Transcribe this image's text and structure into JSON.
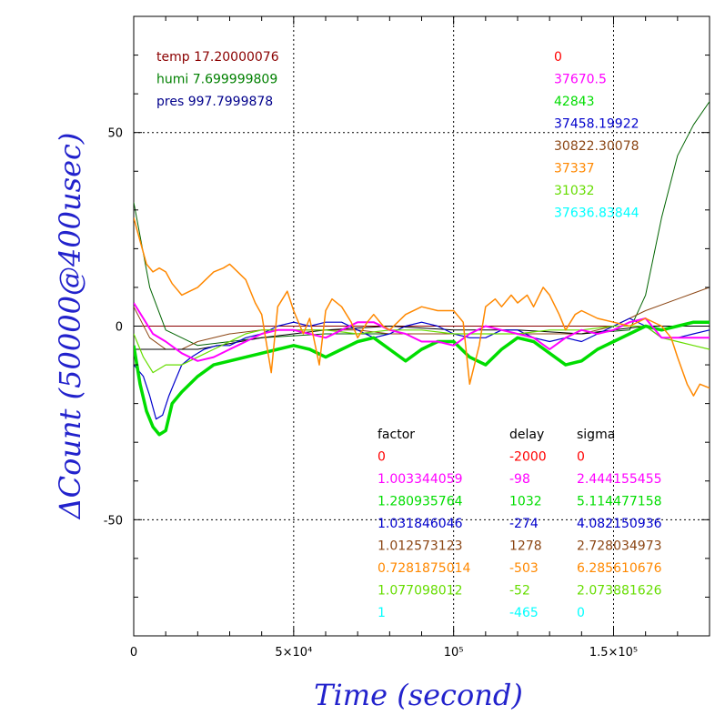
{
  "chart_data": {
    "type": "line",
    "title": "",
    "xlabel": "Time (second)",
    "ylabel": "ΔCount (50000@400usec)",
    "xlim": [
      0,
      180000
    ],
    "ylim": [
      -80,
      80
    ],
    "grid": true,
    "x_ticks": [
      {
        "value": 0,
        "label": "0"
      },
      {
        "value": 50000,
        "label": "5×10⁴"
      },
      {
        "value": 100000,
        "label": "10⁵"
      },
      {
        "value": 150000,
        "label": "1.5×10⁵"
      }
    ],
    "y_ticks": [
      {
        "value": 50,
        "label": "50"
      },
      {
        "value": 0,
        "label": "0"
      },
      {
        "value": -50,
        "label": "-50"
      }
    ],
    "env_legend": [
      {
        "text": "temp 17.20000076",
        "color": "#8b0000"
      },
      {
        "text": "humi 7.699999809",
        "color": "#008000"
      },
      {
        "text": "pres 997.7999878",
        "color": "#00008b"
      }
    ],
    "offsets": [
      {
        "text": "0",
        "color": "#ff0000"
      },
      {
        "text": "37670.5",
        "color": "#ff00ff"
      },
      {
        "text": "42843",
        "color": "#00dd00"
      },
      {
        "text": "37458.19922",
        "color": "#0000cc"
      },
      {
        "text": "30822.30078",
        "color": "#8b4513"
      },
      {
        "text": "37337",
        "color": "#ff8800"
      },
      {
        "text": "31032",
        "color": "#66dd00"
      },
      {
        "text": "37636.83844",
        "color": "#00ffff"
      }
    ],
    "stats_table": {
      "headers": [
        "factor",
        "delay",
        "sigma"
      ],
      "rows": [
        {
          "factor": "0",
          "delay": "-2000",
          "sigma": "0",
          "color": "#ff0000"
        },
        {
          "factor": "1.003344059",
          "delay": "-98",
          "sigma": "2.444155455",
          "color": "#ff00ff"
        },
        {
          "factor": "1.280935764",
          "delay": "1032",
          "sigma": "5.114477158",
          "color": "#00dd00"
        },
        {
          "factor": "1.031846046",
          "delay": "-274",
          "sigma": "4.082150936",
          "color": "#0000cc"
        },
        {
          "factor": "1.012573123",
          "delay": "1278",
          "sigma": "2.728034973",
          "color": "#8b4513"
        },
        {
          "factor": "0.7281875014",
          "delay": "-503",
          "sigma": "6.285610676",
          "color": "#ff8800"
        },
        {
          "factor": "1.077098012",
          "delay": "-52",
          "sigma": "2.073881626",
          "color": "#66dd00"
        },
        {
          "factor": "1",
          "delay": "-465",
          "sigma": "0",
          "color": "#00ffff"
        }
      ]
    },
    "series": [
      {
        "color": "#8b0000",
        "width": 1,
        "x": [
          0,
          180000
        ],
        "y": [
          0,
          0
        ]
      },
      {
        "color": "#006400",
        "width": 1,
        "x": [
          0,
          5000,
          10000,
          20000,
          40000,
          60000,
          80000,
          100000,
          120000,
          140000,
          155000,
          160000,
          165000,
          170000,
          175000,
          180000
        ],
        "y": [
          32,
          10,
          -1,
          -5,
          -3,
          -2,
          -2,
          -2,
          -2,
          -2,
          -1,
          8,
          28,
          44,
          52,
          58
        ]
      },
      {
        "color": "#8b4513",
        "width": 1,
        "x": [
          0,
          5000,
          10000,
          15000,
          20000,
          30000,
          40000,
          50000,
          60000,
          70000,
          80000,
          90000,
          100000,
          110000,
          120000,
          130000,
          140000,
          150000,
          160000,
          170000,
          180000
        ],
        "y": [
          5,
          -3,
          -6,
          -6,
          -4,
          -2,
          -1,
          -1,
          -1,
          -1,
          -2,
          -2,
          -2,
          -2,
          -2,
          -2,
          -2,
          0,
          4,
          7,
          10
        ]
      },
      {
        "color": "#000000",
        "width": 1,
        "x": [
          0,
          10000,
          20000,
          40000,
          60000,
          80000,
          100000,
          120000,
          140000,
          160000,
          180000
        ],
        "y": [
          -6,
          -6,
          -6,
          -3,
          -1,
          0,
          -1,
          -1,
          -2,
          0,
          0
        ]
      },
      {
        "color": "#0000cc",
        "width": 1.2,
        "x": [
          0,
          3000,
          5000,
          7000,
          9000,
          11000,
          13000,
          15000,
          18000,
          22000,
          26000,
          30000,
          35000,
          40000,
          45000,
          50000,
          55000,
          60000,
          65000,
          70000,
          75000,
          80000,
          85000,
          90000,
          95000,
          100000,
          105000,
          110000,
          115000,
          120000,
          125000,
          130000,
          135000,
          140000,
          145000,
          150000,
          155000,
          160000,
          165000,
          170000,
          175000,
          180000
        ],
        "y": [
          -10,
          -13,
          -18,
          -24,
          -23,
          -18,
          -14,
          -10,
          -8,
          -6,
          -5,
          -5,
          -3,
          -2,
          0,
          1,
          0,
          1,
          1,
          -1,
          -3,
          -2,
          0,
          1,
          0,
          -2,
          -3,
          -3,
          -1,
          -1,
          -3,
          -4,
          -3,
          -4,
          -2,
          0,
          2,
          0,
          -3,
          -3,
          -2,
          -1
        ]
      },
      {
        "color": "#66dd00",
        "width": 1.2,
        "x": [
          0,
          3000,
          6000,
          10000,
          15000,
          20000,
          25000,
          30000,
          35000,
          40000,
          50000,
          60000,
          70000,
          80000,
          90000,
          100000,
          110000,
          120000,
          130000,
          140000,
          150000,
          160000,
          165000,
          170000,
          175000,
          180000
        ],
        "y": [
          -2,
          -8,
          -12,
          -10,
          -10,
          -8,
          -6,
          -4,
          -2,
          -1,
          -1,
          -1,
          -2,
          -1,
          -1,
          -2,
          -2,
          -2,
          -1,
          -1,
          0,
          0,
          -3,
          -4,
          -5,
          -6
        ]
      },
      {
        "color": "#00dd00",
        "width": 3.5,
        "x": [
          0,
          2000,
          4000,
          6000,
          8000,
          10000,
          12000,
          15000,
          20000,
          25000,
          30000,
          35000,
          40000,
          45000,
          50000,
          55000,
          60000,
          65000,
          70000,
          75000,
          80000,
          85000,
          90000,
          95000,
          100000,
          105000,
          110000,
          115000,
          120000,
          125000,
          130000,
          135000,
          140000,
          145000,
          150000,
          155000,
          160000,
          165000,
          170000,
          175000,
          180000
        ],
        "y": [
          -5,
          -15,
          -22,
          -26,
          -28,
          -27,
          -20,
          -17,
          -13,
          -10,
          -9,
          -8,
          -7,
          -6,
          -5,
          -6,
          -8,
          -6,
          -4,
          -3,
          -6,
          -9,
          -6,
          -4,
          -4,
          -8,
          -10,
          -6,
          -3,
          -4,
          -7,
          -10,
          -9,
          -6,
          -4,
          -2,
          0,
          -1,
          0,
          1,
          1
        ]
      },
      {
        "color": "#ff00ff",
        "width": 2,
        "x": [
          0,
          3000,
          6000,
          10000,
          15000,
          20000,
          25000,
          30000,
          35000,
          40000,
          45000,
          50000,
          55000,
          60000,
          65000,
          70000,
          75000,
          80000,
          85000,
          90000,
          95000,
          100000,
          105000,
          110000,
          115000,
          120000,
          125000,
          130000,
          135000,
          140000,
          145000,
          150000,
          155000,
          160000,
          165000,
          170000,
          175000,
          180000
        ],
        "y": [
          6,
          2,
          -2,
          -4,
          -7,
          -9,
          -8,
          -6,
          -4,
          -2,
          -1,
          -1,
          -2,
          -3,
          -1,
          1,
          1,
          -1,
          -2,
          -4,
          -4,
          -5,
          -2,
          0,
          -1,
          -2,
          -3,
          -6,
          -3,
          -1,
          -2,
          -1,
          1,
          2,
          -3,
          -3,
          -3,
          -3
        ]
      },
      {
        "color": "#ff8800",
        "width": 1.5,
        "x": [
          0,
          2000,
          4000,
          6000,
          8000,
          10000,
          12000,
          15000,
          20000,
          25000,
          28000,
          30000,
          35000,
          38000,
          40000,
          43000,
          45000,
          48000,
          50000,
          53000,
          55000,
          58000,
          60000,
          62000,
          65000,
          68000,
          70000,
          73000,
          75000,
          78000,
          80000,
          85000,
          90000,
          95000,
          100000,
          103000,
          105000,
          108000,
          110000,
          113000,
          115000,
          118000,
          120000,
          123000,
          125000,
          128000,
          130000,
          133000,
          135000,
          138000,
          140000,
          145000,
          150000,
          155000,
          160000,
          165000,
          168000,
          170000,
          173000,
          175000,
          177000,
          180000
        ],
        "y": [
          28,
          22,
          16,
          14,
          15,
          14,
          11,
          8,
          10,
          14,
          15,
          16,
          12,
          6,
          3,
          -12,
          5,
          9,
          4,
          -2,
          2,
          -10,
          4,
          7,
          5,
          1,
          -3,
          1,
          3,
          0,
          -1,
          3,
          5,
          4,
          4,
          1,
          -15,
          -5,
          5,
          7,
          5,
          8,
          6,
          8,
          5,
          10,
          8,
          3,
          -1,
          3,
          4,
          2,
          1,
          0,
          2,
          0,
          -3,
          -8,
          -15,
          -18,
          -15,
          -16
        ]
      }
    ]
  }
}
